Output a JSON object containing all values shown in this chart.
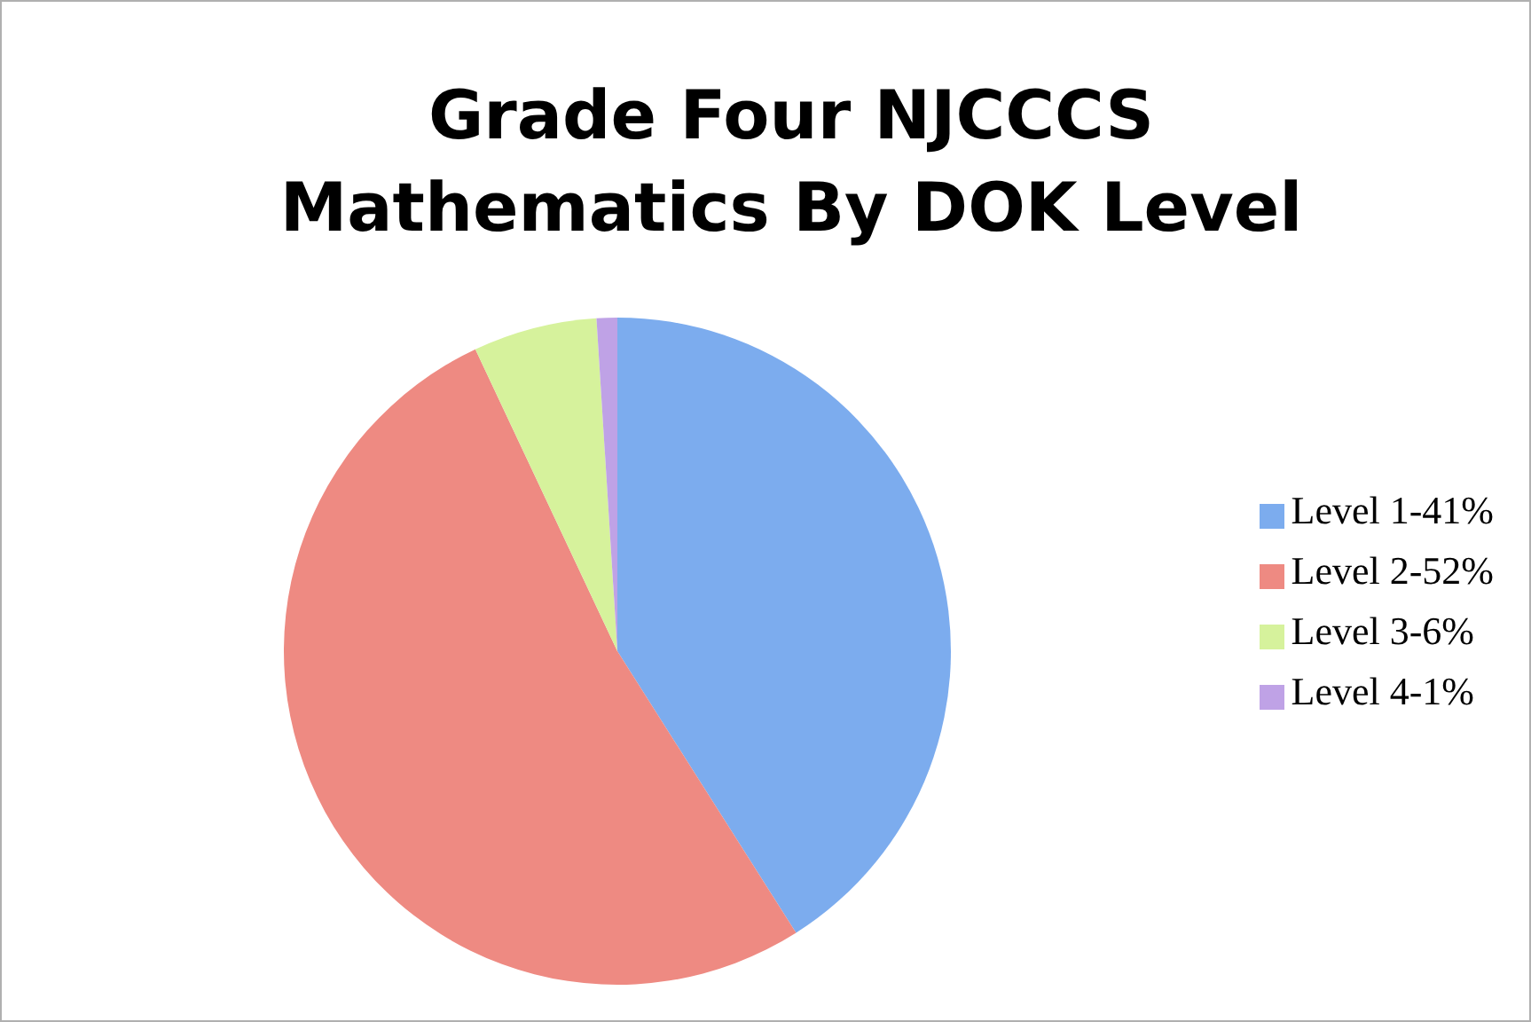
{
  "chart_data": {
    "type": "pie",
    "title": "Grade Four NJCCCS Mathematics By DOK Level",
    "categories": [
      "Level 1-41%",
      "Level 2-52%",
      "Level 3-6%",
      "Level 4-1%"
    ],
    "values": [
      41,
      52,
      6,
      1
    ],
    "colors": [
      "#7cacee",
      "#ee8a82",
      "#d6f29c",
      "#bfa2e6"
    ],
    "legend": "right"
  }
}
